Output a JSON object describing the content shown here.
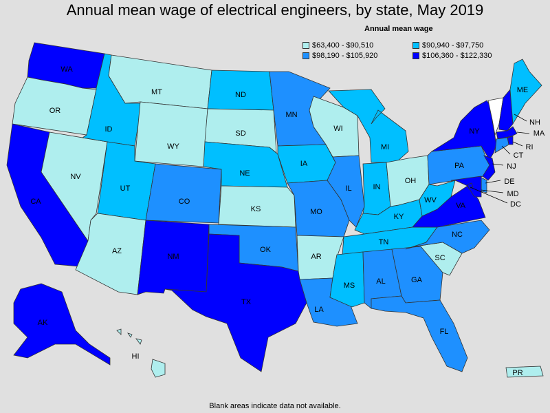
{
  "title": "Annual mean wage of electrical engineers, by state, May 2019",
  "legend": {
    "title": "Annual mean wage",
    "items": [
      {
        "label": "$63,400 - $90,510",
        "color": "#afeeee"
      },
      {
        "label": "$90,940 - $97,750",
        "color": "#00bfff"
      },
      {
        "label": "$98,190 - $105,920",
        "color": "#1e90ff"
      },
      {
        "label": "$106,360 - $122,330",
        "color": "#0000ff"
      }
    ]
  },
  "footnote": "Blank areas indicate data not available.",
  "colors": {
    "background": "#e0e0e0",
    "no_data": "#ffffff",
    "ocean": "#e0e0e0"
  },
  "states": {
    "WA": {
      "label": "WA",
      "tier": 3
    },
    "OR": {
      "label": "OR",
      "tier": 0
    },
    "CA": {
      "label": "CA",
      "tier": 3
    },
    "NV": {
      "label": "NV",
      "tier": 0
    },
    "ID": {
      "label": "ID",
      "tier": 1
    },
    "MT": {
      "label": "MT",
      "tier": 0
    },
    "WY": {
      "label": "WY",
      "tier": 0
    },
    "UT": {
      "label": "UT",
      "tier": 1
    },
    "AZ": {
      "label": "AZ",
      "tier": 0
    },
    "CO": {
      "label": "CO",
      "tier": 2
    },
    "NM": {
      "label": "NM",
      "tier": 3
    },
    "ND": {
      "label": "ND",
      "tier": 1
    },
    "SD": {
      "label": "SD",
      "tier": 0
    },
    "NE": {
      "label": "NE",
      "tier": 1
    },
    "KS": {
      "label": "KS",
      "tier": 0
    },
    "OK": {
      "label": "OK",
      "tier": 2
    },
    "TX": {
      "label": "TX",
      "tier": 3
    },
    "MN": {
      "label": "MN",
      "tier": 2
    },
    "IA": {
      "label": "IA",
      "tier": 1
    },
    "MO": {
      "label": "MO",
      "tier": 2
    },
    "AR": {
      "label": "AR",
      "tier": 0
    },
    "LA": {
      "label": "LA",
      "tier": 2
    },
    "WI": {
      "label": "WI",
      "tier": 0
    },
    "IL": {
      "label": "IL",
      "tier": 2
    },
    "MI": {
      "label": "MI",
      "tier": 1
    },
    "IN": {
      "label": "IN",
      "tier": 1
    },
    "OH": {
      "label": "OH",
      "tier": 0
    },
    "KY": {
      "label": "KY",
      "tier": 1
    },
    "TN": {
      "label": "TN",
      "tier": 1
    },
    "MS": {
      "label": "MS",
      "tier": 1
    },
    "AL": {
      "label": "AL",
      "tier": 2
    },
    "GA": {
      "label": "GA",
      "tier": 2
    },
    "FL": {
      "label": "FL",
      "tier": 2
    },
    "SC": {
      "label": "SC",
      "tier": 0
    },
    "NC": {
      "label": "NC",
      "tier": 2
    },
    "VA": {
      "label": "VA",
      "tier": 3
    },
    "WV": {
      "label": "WV",
      "tier": 1
    },
    "PA": {
      "label": "PA",
      "tier": 2
    },
    "NY": {
      "label": "NY",
      "tier": 3
    },
    "VT": {
      "label": "",
      "tier": -1
    },
    "NH": {
      "label": "NH",
      "tier": 3
    },
    "ME": {
      "label": "ME",
      "tier": 1
    },
    "MA": {
      "label": "MA",
      "tier": 3
    },
    "RI": {
      "label": "RI",
      "tier": 3
    },
    "CT": {
      "label": "CT",
      "tier": 2
    },
    "NJ": {
      "label": "NJ",
      "tier": 3
    },
    "DE": {
      "label": "DE",
      "tier": 2
    },
    "MD": {
      "label": "MD",
      "tier": 3
    },
    "DC": {
      "label": "DC",
      "tier": 3
    },
    "AK": {
      "label": "AK",
      "tier": 3
    },
    "HI": {
      "label": "HI",
      "tier": 0
    },
    "PR": {
      "label": "PR",
      "tier": 0
    }
  }
}
